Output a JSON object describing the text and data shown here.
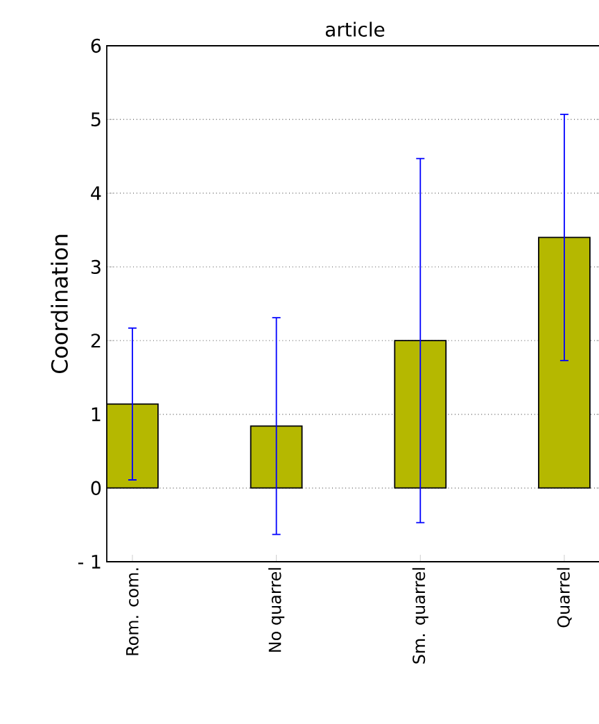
{
  "chart_data": {
    "type": "bar",
    "title": "article",
    "ylabel": "Coordination",
    "categories": [
      "Rom. com.",
      "No quarrel",
      "Sm. quarrel",
      "Quarrel"
    ],
    "values": [
      1.14,
      0.84,
      2.0,
      3.4
    ],
    "errors": [
      1.03,
      1.47,
      2.47,
      1.67
    ],
    "color": "#b5b800",
    "ylim": [
      -1,
      6
    ],
    "yticks": [
      {
        "value": -1,
        "label": "- 1"
      },
      0,
      1,
      2,
      3,
      4,
      5,
      6
    ],
    "grid": "y"
  }
}
